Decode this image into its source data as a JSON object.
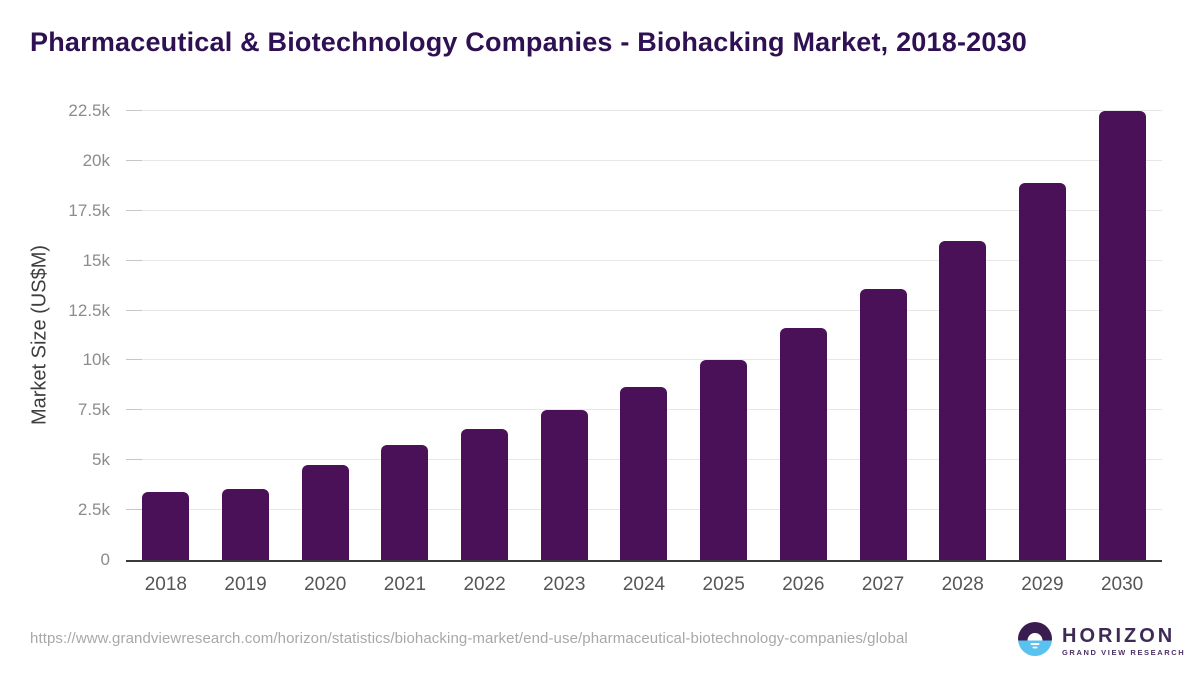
{
  "header": {
    "title": "Pharmaceutical & Biotechnology Companies - Biohacking Market, 2018-2030"
  },
  "chart_data": {
    "type": "bar",
    "title": "Pharmaceutical & Biotechnology Companies - Biohacking Market, 2018-2030",
    "categories": [
      "2018",
      "2019",
      "2020",
      "2021",
      "2022",
      "2023",
      "2024",
      "2025",
      "2026",
      "2027",
      "2028",
      "2029",
      "2030"
    ],
    "values": [
      3400,
      3550,
      4750,
      5750,
      6550,
      7500,
      8650,
      10000,
      11650,
      13600,
      16000,
      18900,
      22500
    ],
    "xlabel": "",
    "ylabel": "Market Size (US$M)",
    "ylim": [
      0,
      22500
    ],
    "yticks": [
      {
        "value": 0,
        "label": "0"
      },
      {
        "value": 2500,
        "label": "2.5k"
      },
      {
        "value": 5000,
        "label": "5k"
      },
      {
        "value": 7500,
        "label": "7.5k"
      },
      {
        "value": 10000,
        "label": "10k"
      },
      {
        "value": 12500,
        "label": "12.5k"
      },
      {
        "value": 15000,
        "label": "15k"
      },
      {
        "value": 17500,
        "label": "17.5k"
      },
      {
        "value": 20000,
        "label": "20k"
      },
      {
        "value": 22500,
        "label": "22.5k"
      }
    ],
    "grid": true,
    "legend": "none",
    "bar_color": "#4a1158"
  },
  "footer": {
    "source_url": "https://www.grandviewresearch.com/horizon/statistics/biohacking-market/end-use/pharmaceutical-biotechnology-companies/global",
    "logo": {
      "name": "HORIZON",
      "subtitle": "GRAND VIEW RESEARCH"
    }
  },
  "colors": {
    "title": "#2f1153",
    "bar": "#4a1158",
    "axis_line": "#3a3a3a",
    "gridline": "#e7e7e7",
    "tick_label": "#8c8c8c",
    "x_label": "#565656",
    "url_text": "#a8a8a8",
    "logo_purple": "#3a1d4f",
    "logo_blue": "#5ac2ef"
  }
}
